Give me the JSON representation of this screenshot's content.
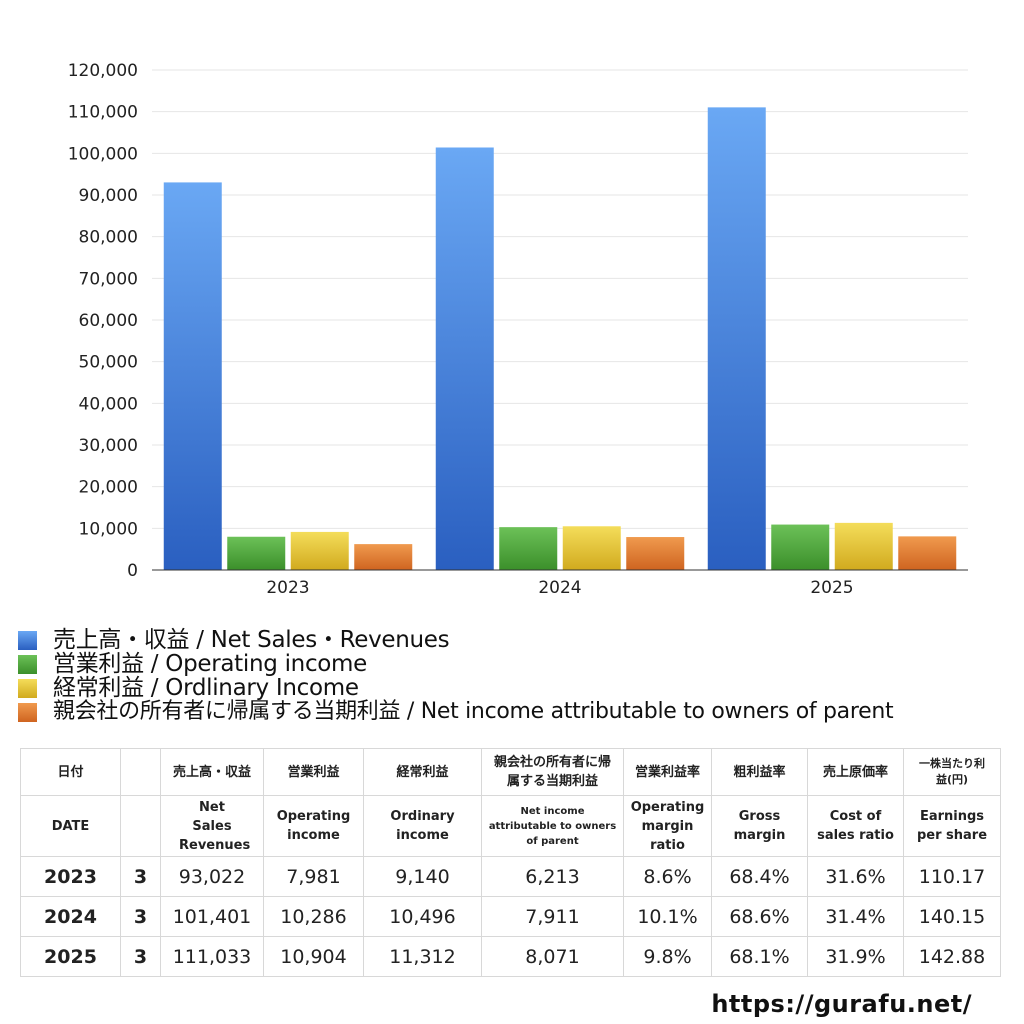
{
  "chart_data": {
    "type": "bar",
    "categories": [
      "2023",
      "2024",
      "2025"
    ],
    "series": [
      {
        "name": "売上高・収益 / Net Sales・Revenues",
        "values": [
          93022,
          101401,
          111033
        ],
        "color": "#3a7de0"
      },
      {
        "name": "営業利益 / Operating income",
        "values": [
          7981,
          10286,
          10904
        ],
        "color": "#4ea83a"
      },
      {
        "name": "経常利益 / Ordlinary Income",
        "values": [
          9140,
          10496,
          11312
        ],
        "color": "#e3c232"
      },
      {
        "name": "親会社の所有者に帰属する当期利益 / Net income attributable to owners of parent",
        "values": [
          6213,
          7911,
          8071
        ],
        "color": "#e07a2e"
      }
    ],
    "ylim": [
      0,
      120000
    ],
    "yticks": [
      "0",
      "10,000",
      "20,000",
      "30,000",
      "40,000",
      "50,000",
      "60,000",
      "70,000",
      "80,000",
      "90,000",
      "100,000",
      "110,000",
      "120,000"
    ],
    "grid": true,
    "legend_position": "bottom"
  },
  "table": {
    "header_jp": [
      "日付",
      "売上高・収益",
      "営業利益",
      "経常利益",
      "親会社の所有者に帰属する当期利益",
      "営業利益率",
      "粗利益率",
      "売上原価率",
      "一株当たり利益(円)"
    ],
    "header_en": [
      "DATE",
      "Net Sales Revenues",
      "Operating income",
      "Ordinary income",
      "Net income attributable to owners of parent",
      "Operating margin ratio",
      "Gross margin",
      "Cost of sales ratio",
      "Earnings per share"
    ],
    "rows": [
      {
        "year": "2023",
        "month": "3",
        "sales": "93,022",
        "op": "7,981",
        "ord": "9,140",
        "net": "6,213",
        "opm": "8.6%",
        "gm": "68.4%",
        "cos": "31.6%",
        "eps": "110.17"
      },
      {
        "year": "2024",
        "month": "3",
        "sales": "101,401",
        "op": "10,286",
        "ord": "10,496",
        "net": "7,911",
        "opm": "10.1%",
        "gm": "68.6%",
        "cos": "31.4%",
        "eps": "140.15"
      },
      {
        "year": "2025",
        "month": "3",
        "sales": "111,033",
        "op": "10,904",
        "ord": "11,312",
        "net": "8,071",
        "opm": "9.8%",
        "gm": "68.1%",
        "cos": "31.9%",
        "eps": "142.88"
      }
    ]
  },
  "footer": {
    "url": "https://gurafu.net/"
  }
}
